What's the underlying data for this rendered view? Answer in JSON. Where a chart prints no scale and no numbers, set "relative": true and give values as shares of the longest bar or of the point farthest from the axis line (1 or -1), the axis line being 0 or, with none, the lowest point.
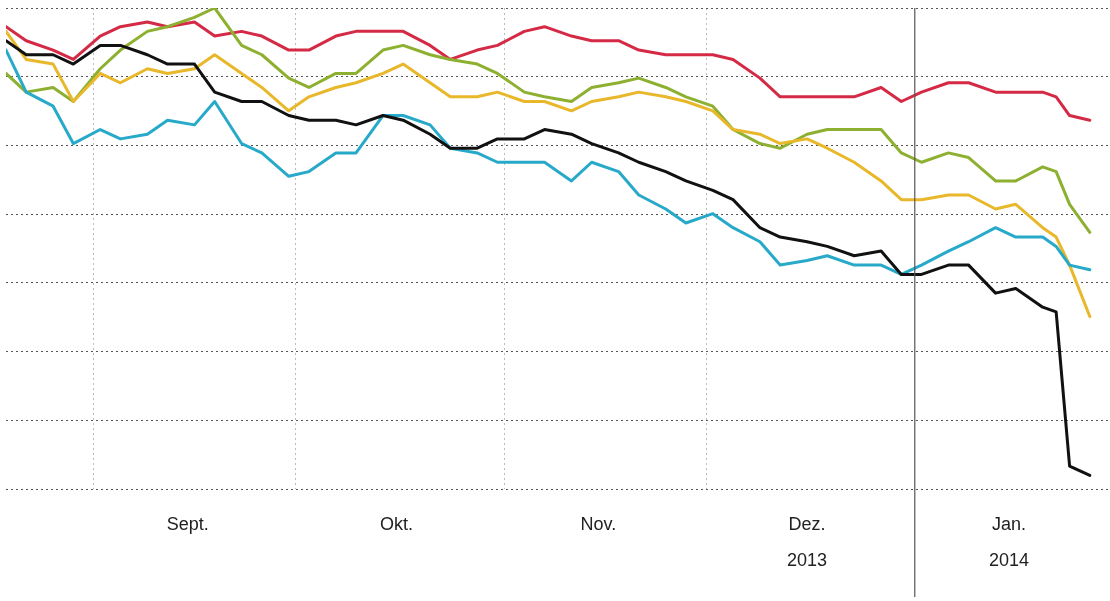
{
  "chart_data": {
    "type": "line",
    "relative": true,
    "legend": false,
    "grid": true,
    "marker": "none",
    "line_style": "solid",
    "x": [
      "2013-08-19",
      "2013-08-22",
      "2013-08-26",
      "2013-08-29",
      "2013-09-02",
      "2013-09-05",
      "2013-09-09",
      "2013-09-12",
      "2013-09-16",
      "2013-09-19",
      "2013-09-23",
      "2013-09-26",
      "2013-09-30",
      "2013-10-03",
      "2013-10-07",
      "2013-10-10",
      "2013-10-14",
      "2013-10-17",
      "2013-10-21",
      "2013-10-24",
      "2013-10-28",
      "2013-10-31",
      "2013-11-04",
      "2013-11-07",
      "2013-11-11",
      "2013-11-14",
      "2013-11-18",
      "2013-11-21",
      "2013-11-25",
      "2013-11-28",
      "2013-12-02",
      "2013-12-05",
      "2013-12-09",
      "2013-12-12",
      "2013-12-16",
      "2013-12-19",
      "2013-12-23",
      "2013-12-27",
      "2013-12-30",
      "2014-01-02",
      "2014-01-06",
      "2014-01-09",
      "2014-01-13",
      "2014-01-16",
      "2014-01-20",
      "2014-01-22",
      "2014-01-24",
      "2014-01-27"
    ],
    "xlim": [
      "2013-08-19",
      "2014-01-30"
    ],
    "xticks": [
      {
        "value": "2013-09-01",
        "label": null
      },
      {
        "value": "2013-09-15",
        "label": "Sept."
      },
      {
        "value": "2013-10-01",
        "label": null
      },
      {
        "value": "2013-10-16",
        "label": "Okt."
      },
      {
        "value": "2013-11-01",
        "label": null
      },
      {
        "value": "2013-11-15",
        "label": "Nov."
      },
      {
        "value": "2013-12-01",
        "label": null
      },
      {
        "value": "2013-12-16",
        "label": "Dez.\n2013"
      },
      {
        "value": "2014-01-15",
        "label": "Jan.\n2014"
      }
    ],
    "ref_lines": [
      {
        "axis": "x",
        "value": "2014-01-01",
        "color": "#555555",
        "line_style": "solid"
      }
    ],
    "series": [
      {
        "color": "#d42a45",
        "values": [
          0.96,
          0.93,
          0.91,
          0.89,
          0.94,
          0.96,
          0.97,
          0.96,
          0.97,
          0.94,
          0.95,
          0.94,
          0.91,
          0.91,
          0.94,
          0.95,
          0.95,
          0.95,
          0.92,
          0.89,
          0.91,
          0.92,
          0.95,
          0.96,
          0.94,
          0.93,
          0.93,
          0.91,
          0.9,
          0.9,
          0.9,
          0.89,
          0.85,
          0.81,
          0.81,
          0.81,
          0.81,
          0.83,
          0.8,
          0.82,
          0.84,
          0.84,
          0.82,
          0.82,
          0.82,
          0.81,
          0.77,
          0.76
        ]
      },
      {
        "color": "#8db030",
        "values": [
          0.86,
          0.82,
          0.83,
          0.8,
          0.87,
          0.91,
          0.95,
          0.96,
          0.98,
          1,
          0.92,
          0.9,
          0.85,
          0.83,
          0.86,
          0.86,
          0.91,
          0.92,
          0.9,
          0.89,
          0.88,
          0.86,
          0.82,
          0.81,
          0.8,
          0.83,
          0.84,
          0.85,
          0.83,
          0.81,
          0.79,
          0.74,
          0.71,
          0.7,
          0.73,
          0.74,
          0.74,
          0.74,
          0.69,
          0.67,
          0.69,
          0.68,
          0.63,
          0.63,
          0.66,
          0.65,
          0.58,
          0.52
        ]
      },
      {
        "color": "#e8b82a",
        "values": [
          0.95,
          0.89,
          0.88,
          0.8,
          0.86,
          0.84,
          0.87,
          0.86,
          0.87,
          0.9,
          0.86,
          0.83,
          0.78,
          0.81,
          0.83,
          0.84,
          0.86,
          0.88,
          0.84,
          0.81,
          0.81,
          0.82,
          0.8,
          0.8,
          0.78,
          0.8,
          0.81,
          0.82,
          0.81,
          0.8,
          0.78,
          0.74,
          0.73,
          0.71,
          0.72,
          0.7,
          0.67,
          0.63,
          0.59,
          0.59,
          0.6,
          0.6,
          0.57,
          0.58,
          0.53,
          0.51,
          0.45,
          0.34
        ]
      },
      {
        "color": "#27a9c9",
        "values": [
          0.91,
          0.82,
          0.79,
          0.71,
          0.74,
          0.72,
          0.73,
          0.76,
          0.75,
          0.8,
          0.71,
          0.69,
          0.64,
          0.65,
          0.69,
          0.69,
          0.77,
          0.77,
          0.75,
          0.7,
          0.69,
          0.67,
          0.67,
          0.67,
          0.63,
          0.67,
          0.65,
          0.6,
          0.57,
          0.54,
          0.56,
          0.53,
          0.5,
          0.45,
          0.46,
          0.47,
          0.45,
          0.45,
          0.43,
          0.45,
          0.48,
          0.5,
          0.53,
          0.51,
          0.51,
          0.49,
          0.45,
          0.44
        ]
      },
      {
        "color": "#111111",
        "values": [
          0.93,
          0.9,
          0.9,
          0.88,
          0.92,
          0.92,
          0.9,
          0.88,
          0.88,
          0.82,
          0.8,
          0.8,
          0.77,
          0.76,
          0.76,
          0.75,
          0.77,
          0.76,
          0.73,
          0.7,
          0.7,
          0.72,
          0.72,
          0.74,
          0.73,
          0.71,
          0.69,
          0.67,
          0.65,
          0.63,
          0.61,
          0.59,
          0.53,
          0.51,
          0.5,
          0.49,
          0.47,
          0.48,
          0.43,
          0.43,
          0.45,
          0.45,
          0.39,
          0.4,
          0.36,
          0.35,
          0.02,
          0
        ]
      }
    ]
  }
}
